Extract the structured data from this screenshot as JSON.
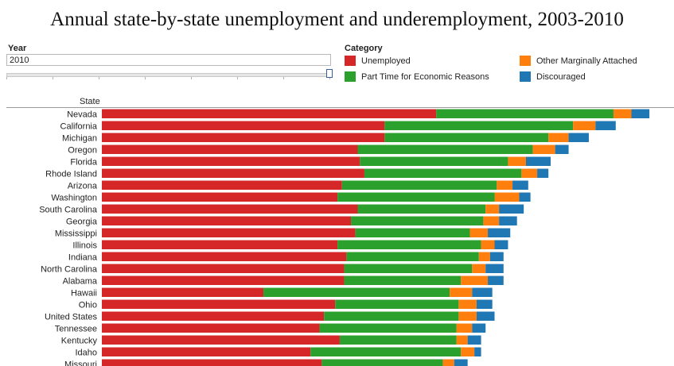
{
  "title": "Annual state-by-state unemployment and underemployment, 2003-2010",
  "year_filter": {
    "label": "Year",
    "value": "2010"
  },
  "legend": {
    "title": "Category",
    "items": [
      {
        "label": "Unemployed",
        "color": "#d62728"
      },
      {
        "label": "Other Marginally Attached",
        "color": "#ff7f0e"
      },
      {
        "label": "Part Time for Economic Reasons",
        "color": "#2ca02c"
      },
      {
        "label": "Discouraged",
        "color": "#1f77b4"
      }
    ]
  },
  "chart_data": {
    "type": "bar",
    "orientation": "horizontal",
    "stacked": true,
    "title": "Annual state-by-state unemployment and underemployment, 2003-2010",
    "category_axis_label": "State",
    "categories": [
      "Nevada",
      "California",
      "Michigan",
      "Oregon",
      "Florida",
      "Rhode Island",
      "Arizona",
      "Washington",
      "South Carolina",
      "Georgia",
      "Mississippi",
      "Illinois",
      "Indiana",
      "North Carolina",
      "Alabama",
      "Hawaii",
      "Ohio",
      "United States",
      "Tennessee",
      "Kentucky",
      "Idaho",
      "Missouri"
    ],
    "series": [
      {
        "name": "Unemployed",
        "color": "#d62728",
        "values": [
          14.9,
          12.6,
          12.6,
          11.4,
          11.5,
          11.7,
          10.7,
          10.5,
          11.4,
          11.1,
          11.3,
          10.5,
          10.9,
          10.8,
          10.8,
          7.2,
          10.4,
          9.9,
          9.7,
          10.6,
          9.3,
          9.8
        ]
      },
      {
        "name": "Part Time for Economic Reasons",
        "color": "#2ca02c",
        "values": [
          7.9,
          8.4,
          7.3,
          7.8,
          6.6,
          7.0,
          6.9,
          7.0,
          5.7,
          5.9,
          5.1,
          6.4,
          5.9,
          5.7,
          5.2,
          8.3,
          5.5,
          6.0,
          6.1,
          5.2,
          6.7,
          5.4
        ]
      },
      {
        "name": "Other Marginally Attached",
        "color": "#ff7f0e",
        "values": [
          0.8,
          1.0,
          0.9,
          1.0,
          0.8,
          0.7,
          0.7,
          1.1,
          0.6,
          0.7,
          0.8,
          0.6,
          0.5,
          0.6,
          1.2,
          1.0,
          0.8,
          0.8,
          0.7,
          0.5,
          0.6,
          0.5
        ]
      },
      {
        "name": "Discouraged",
        "color": "#1f77b4",
        "values": [
          0.8,
          0.9,
          0.9,
          0.6,
          1.1,
          0.5,
          0.7,
          0.5,
          1.1,
          0.8,
          1.0,
          0.6,
          0.6,
          0.8,
          0.7,
          0.9,
          0.7,
          0.8,
          0.6,
          0.6,
          0.3,
          0.6
        ]
      }
    ],
    "legend_position": "top-right",
    "grid": false
  }
}
